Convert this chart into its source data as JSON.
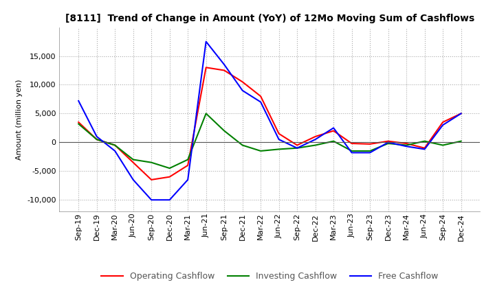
{
  "title": "[8111]  Trend of Change in Amount (YoY) of 12Mo Moving Sum of Cashflows",
  "ylabel": "Amount (million yen)",
  "ylim": [
    -12000,
    20000
  ],
  "yticks": [
    -10000,
    -5000,
    0,
    5000,
    10000,
    15000
  ],
  "labels": [
    "Sep-19",
    "Dec-19",
    "Mar-20",
    "Jun-20",
    "Sep-20",
    "Dec-20",
    "Mar-21",
    "Jun-21",
    "Sep-21",
    "Dec-21",
    "Mar-22",
    "Jun-22",
    "Sep-22",
    "Dec-22",
    "Mar-23",
    "Jun-23",
    "Sep-23",
    "Dec-23",
    "Mar-24",
    "Jun-24",
    "Sep-24",
    "Dec-24"
  ],
  "operating": [
    3500,
    500,
    -500,
    -3500,
    -6500,
    -6000,
    -4000,
    13000,
    12500,
    10500,
    8000,
    1500,
    -500,
    1000,
    2000,
    -200,
    -300,
    200,
    -200,
    -1000,
    3500,
    5000
  ],
  "investing": [
    3200,
    500,
    -500,
    -3000,
    -3500,
    -4500,
    -3000,
    5000,
    2000,
    -500,
    -1500,
    -1200,
    -1000,
    -500,
    200,
    -1500,
    -1500,
    -200,
    -500,
    200,
    -500,
    200
  ],
  "free": [
    7200,
    1000,
    -1500,
    -6500,
    -10000,
    -10000,
    -6500,
    17500,
    13500,
    9000,
    7000,
    500,
    -1000,
    500,
    2500,
    -1800,
    -1800,
    0,
    -700,
    -1200,
    3000,
    5000
  ],
  "operating_color": "#FF0000",
  "investing_color": "#008000",
  "free_color": "#0000FF",
  "background_color": "#FFFFFF",
  "grid_color": "#AAAAAA",
  "title_fontsize": 10,
  "axis_fontsize": 8,
  "legend_fontsize": 9
}
